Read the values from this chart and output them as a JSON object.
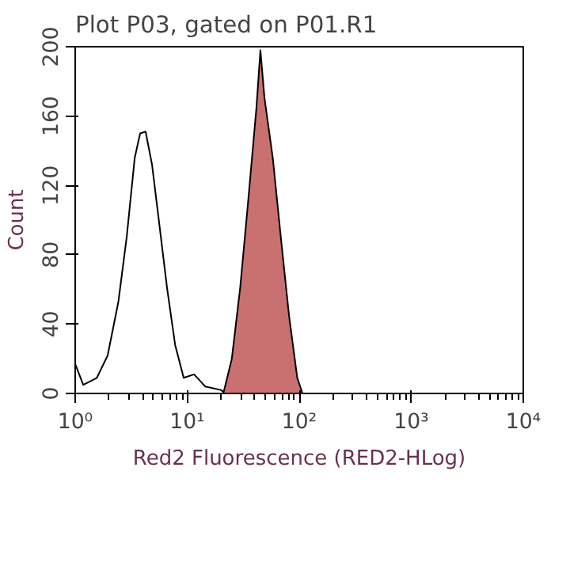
{
  "chart_data": {
    "type": "line",
    "title": "Plot P03, gated on P01.R1",
    "xlabel": "Red2 Fluorescence (RED2-HLog)",
    "ylabel": "Count",
    "log": "x",
    "xlim": [
      1,
      10000
    ],
    "xticks": [
      {
        "value": 1,
        "label": "10⁰"
      },
      {
        "value": 10,
        "label": "10¹"
      },
      {
        "value": 100,
        "label": "10²"
      },
      {
        "value": 1000,
        "label": "10³"
      },
      {
        "value": 10000,
        "label": "10⁴"
      }
    ],
    "ylim": [
      0,
      200
    ],
    "yticks": [
      0,
      40,
      80,
      120,
      160,
      200
    ],
    "grid": false,
    "series": [
      {
        "color": "#000000",
        "x": [
          1,
          1.18,
          1.56,
          1.95,
          2.43,
          2.88,
          3.4,
          3.8,
          4.25,
          4.85,
          5.6,
          6.6,
          7.8,
          9.3,
          11.5,
          14.5,
          20,
          22
        ],
        "values": [
          17,
          5,
          9,
          22,
          53,
          90,
          136,
          150,
          151,
          132,
          99,
          61,
          28,
          9,
          11,
          4,
          2,
          0
        ]
      },
      {
        "type": "area",
        "color": "#c97070",
        "x": [
          21,
          25,
          29.7,
          35,
          41.5,
          45,
          49,
          58,
          68.5,
          81,
          96,
          107
        ],
        "values": [
          0,
          20,
          61,
          111,
          165,
          198,
          170,
          136,
          90,
          45,
          9,
          0
        ]
      }
    ]
  }
}
